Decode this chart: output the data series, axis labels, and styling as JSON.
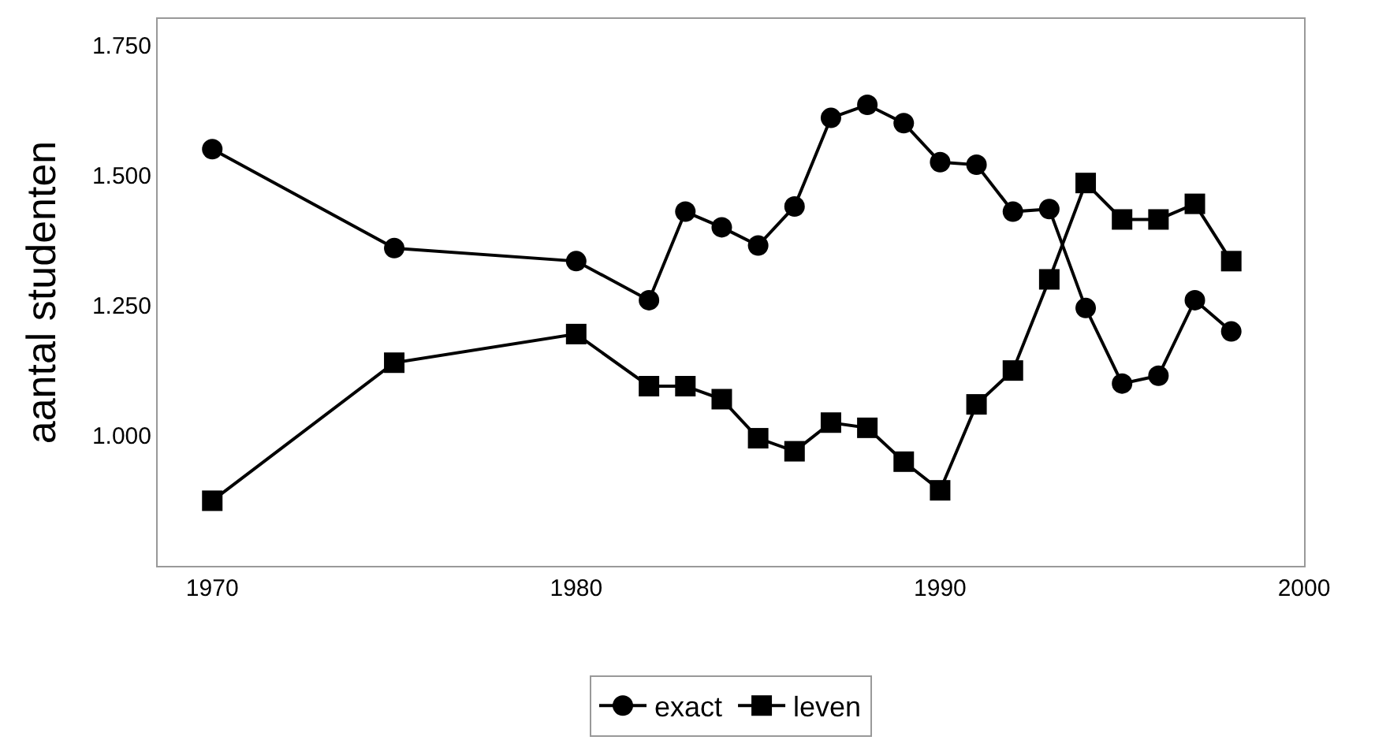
{
  "chart_data": {
    "type": "line",
    "ylabel": "aantal studenten",
    "x": [
      1970,
      1975,
      1980,
      1982,
      1983,
      1984,
      1985,
      1986,
      1987,
      1988,
      1989,
      1990,
      1991,
      1992,
      1993,
      1994,
      1995,
      1996,
      1997,
      1998
    ],
    "series": [
      {
        "name": "exact",
        "color": "#000000",
        "marker": "circle",
        "values": [
          1550,
          1360,
          1335,
          1260,
          1430,
          1400,
          1365,
          1440,
          1610,
          1635,
          1600,
          1525,
          1520,
          1430,
          1435,
          1245,
          1100,
          1115,
          1260,
          1200
        ]
      },
      {
        "name": "leven",
        "color": "#000000",
        "marker": "square",
        "values": [
          875,
          1140,
          1195,
          1095,
          1095,
          1070,
          995,
          970,
          1025,
          1015,
          950,
          895,
          1060,
          1125,
          1300,
          1485,
          1415,
          1415,
          1445,
          1335
        ]
      }
    ],
    "xlim": [
      1968.5,
      2000
    ],
    "xticks": [
      1970,
      1980,
      1990,
      2000
    ],
    "ylim": [
      750,
      1800
    ],
    "yticks": [
      {
        "value": 1000,
        "label": "1.000"
      },
      {
        "value": 1250,
        "label": "1.250"
      },
      {
        "value": 1500,
        "label": "1.500"
      },
      {
        "value": 1750,
        "label": "1.750"
      }
    ],
    "legend": "bottom",
    "line_style": "solid"
  }
}
